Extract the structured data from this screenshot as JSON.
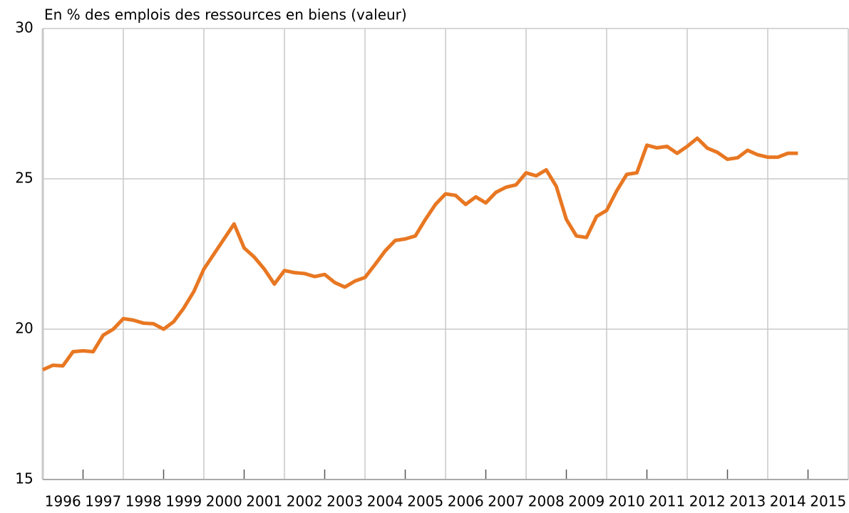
{
  "chart_data": {
    "type": "line",
    "subtitle": "En % des emplois des ressources en biens (valeur)",
    "categories": [
      "1996",
      "1997",
      "1998",
      "1999",
      "2000",
      "2001",
      "2002",
      "2003",
      "2004",
      "2005",
      "2006",
      "2007",
      "2008",
      "2009",
      "2010",
      "2011",
      "2012",
      "2013",
      "2014",
      "2015"
    ],
    "xlim": [
      1996,
      2016
    ],
    "x": [
      1996,
      1996.25,
      1996.5,
      1996.75,
      1997,
      1997.25,
      1997.5,
      1997.75,
      1998,
      1998.25,
      1998.5,
      1998.75,
      1999,
      1999.25,
      1999.5,
      1999.75,
      2000,
      2000.25,
      2000.5,
      2000.75,
      2001,
      2001.25,
      2001.5,
      2001.75,
      2002,
      2002.25,
      2002.5,
      2002.75,
      2003,
      2003.25,
      2003.5,
      2003.75,
      2004,
      2004.25,
      2004.5,
      2004.75,
      2005,
      2005.25,
      2005.5,
      2005.75,
      2006,
      2006.25,
      2006.5,
      2006.75,
      2007,
      2007.25,
      2007.5,
      2007.75,
      2008,
      2008.25,
      2008.5,
      2008.75,
      2009,
      2009.25,
      2009.5,
      2009.75,
      2010,
      2010.25,
      2010.5,
      2010.75,
      2011,
      2011.25,
      2011.5,
      2011.75,
      2012,
      2012.25,
      2012.5,
      2012.75,
      2013,
      2013.25,
      2013.5,
      2013.75,
      2014,
      2014.25,
      2014.5,
      2014.75
    ],
    "series": [
      {
        "color": "#e87722",
        "values": [
          18.65,
          18.8,
          18.78,
          19.25,
          19.28,
          19.25,
          19.8,
          20.0,
          20.35,
          20.3,
          20.2,
          20.18,
          20.0,
          20.25,
          20.7,
          21.25,
          22.0,
          22.5,
          23.0,
          23.5,
          22.7,
          22.4,
          22.0,
          21.5,
          21.95,
          21.88,
          21.85,
          21.75,
          21.82,
          21.55,
          21.4,
          21.6,
          21.72,
          22.15,
          22.6,
          22.95,
          23.0,
          23.1,
          23.65,
          24.15,
          24.5,
          24.45,
          24.15,
          24.4,
          24.2,
          24.55,
          24.72,
          24.8,
          25.2,
          25.1,
          25.3,
          24.75,
          23.65,
          23.1,
          23.05,
          23.75,
          23.95,
          24.6,
          25.15,
          25.2,
          26.12,
          26.03,
          26.08,
          25.85,
          26.08,
          26.35,
          26.02,
          25.88,
          25.65,
          25.7,
          25.95,
          25.8,
          25.72,
          25.72,
          25.85,
          25.85
        ]
      }
    ],
    "ylim": [
      15,
      30
    ],
    "yticks": [
      15,
      20,
      25,
      30
    ],
    "grid": true
  }
}
